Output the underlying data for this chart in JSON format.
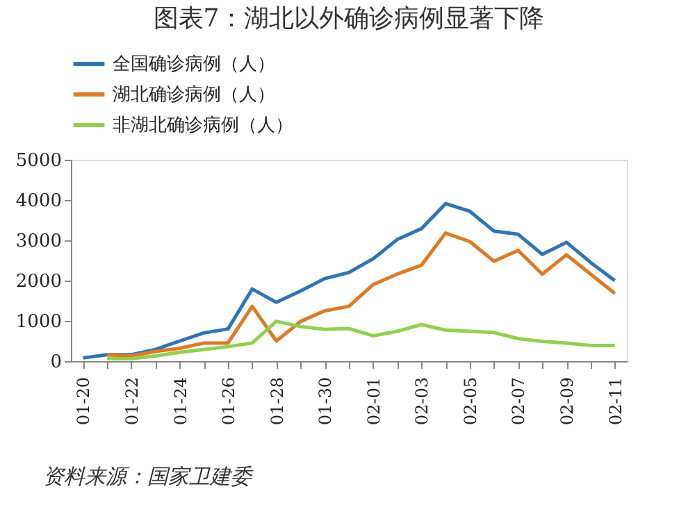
{
  "chart_data": {
    "type": "line",
    "title": "图表7：湖北以外确诊病例显著下降",
    "categories": [
      "01-20",
      null,
      "01-22",
      null,
      "01-24",
      null,
      "01-26",
      null,
      "01-28",
      null,
      "01-30",
      null,
      "02-01",
      null,
      "02-03",
      null,
      "02-05",
      null,
      "02-07",
      null,
      "02-09",
      null,
      "02-11"
    ],
    "series": [
      {
        "name": "全国确诊病例（人）",
        "color": "#2e75b6",
        "values": [
          80,
          160,
          160,
          290,
          500,
          700,
          800,
          1790,
          1460,
          1740,
          2050,
          2200,
          2540,
          3020,
          3290,
          3910,
          3720,
          3230,
          3150,
          2650,
          2950,
          2450,
          2000
        ]
      },
      {
        "name": "湖北确诊病例（人）",
        "color": "#dd7a25",
        "values": [
          null,
          160,
          130,
          240,
          320,
          450,
          450,
          1360,
          500,
          985,
          1250,
          1360,
          1900,
          2160,
          2380,
          3180,
          2970,
          2480,
          2750,
          2160,
          2640,
          2160,
          1680
        ]
      },
      {
        "name": "非湖北确诊病例（人）",
        "color": "#92d050",
        "values": [
          null,
          60,
          60,
          130,
          220,
          290,
          360,
          450,
          990,
          860,
          790,
          810,
          630,
          740,
          910,
          770,
          740,
          710,
          560,
          490,
          450,
          390,
          390
        ]
      }
    ],
    "ylim": [
      0,
      5000
    ],
    "yticks": [
      0,
      1000,
      2000,
      3000,
      4000,
      5000
    ],
    "grid": false,
    "legend": "top",
    "marker": "none",
    "line_style": "solid",
    "annotations": [
      "资料来源：国家卫建委"
    ]
  }
}
